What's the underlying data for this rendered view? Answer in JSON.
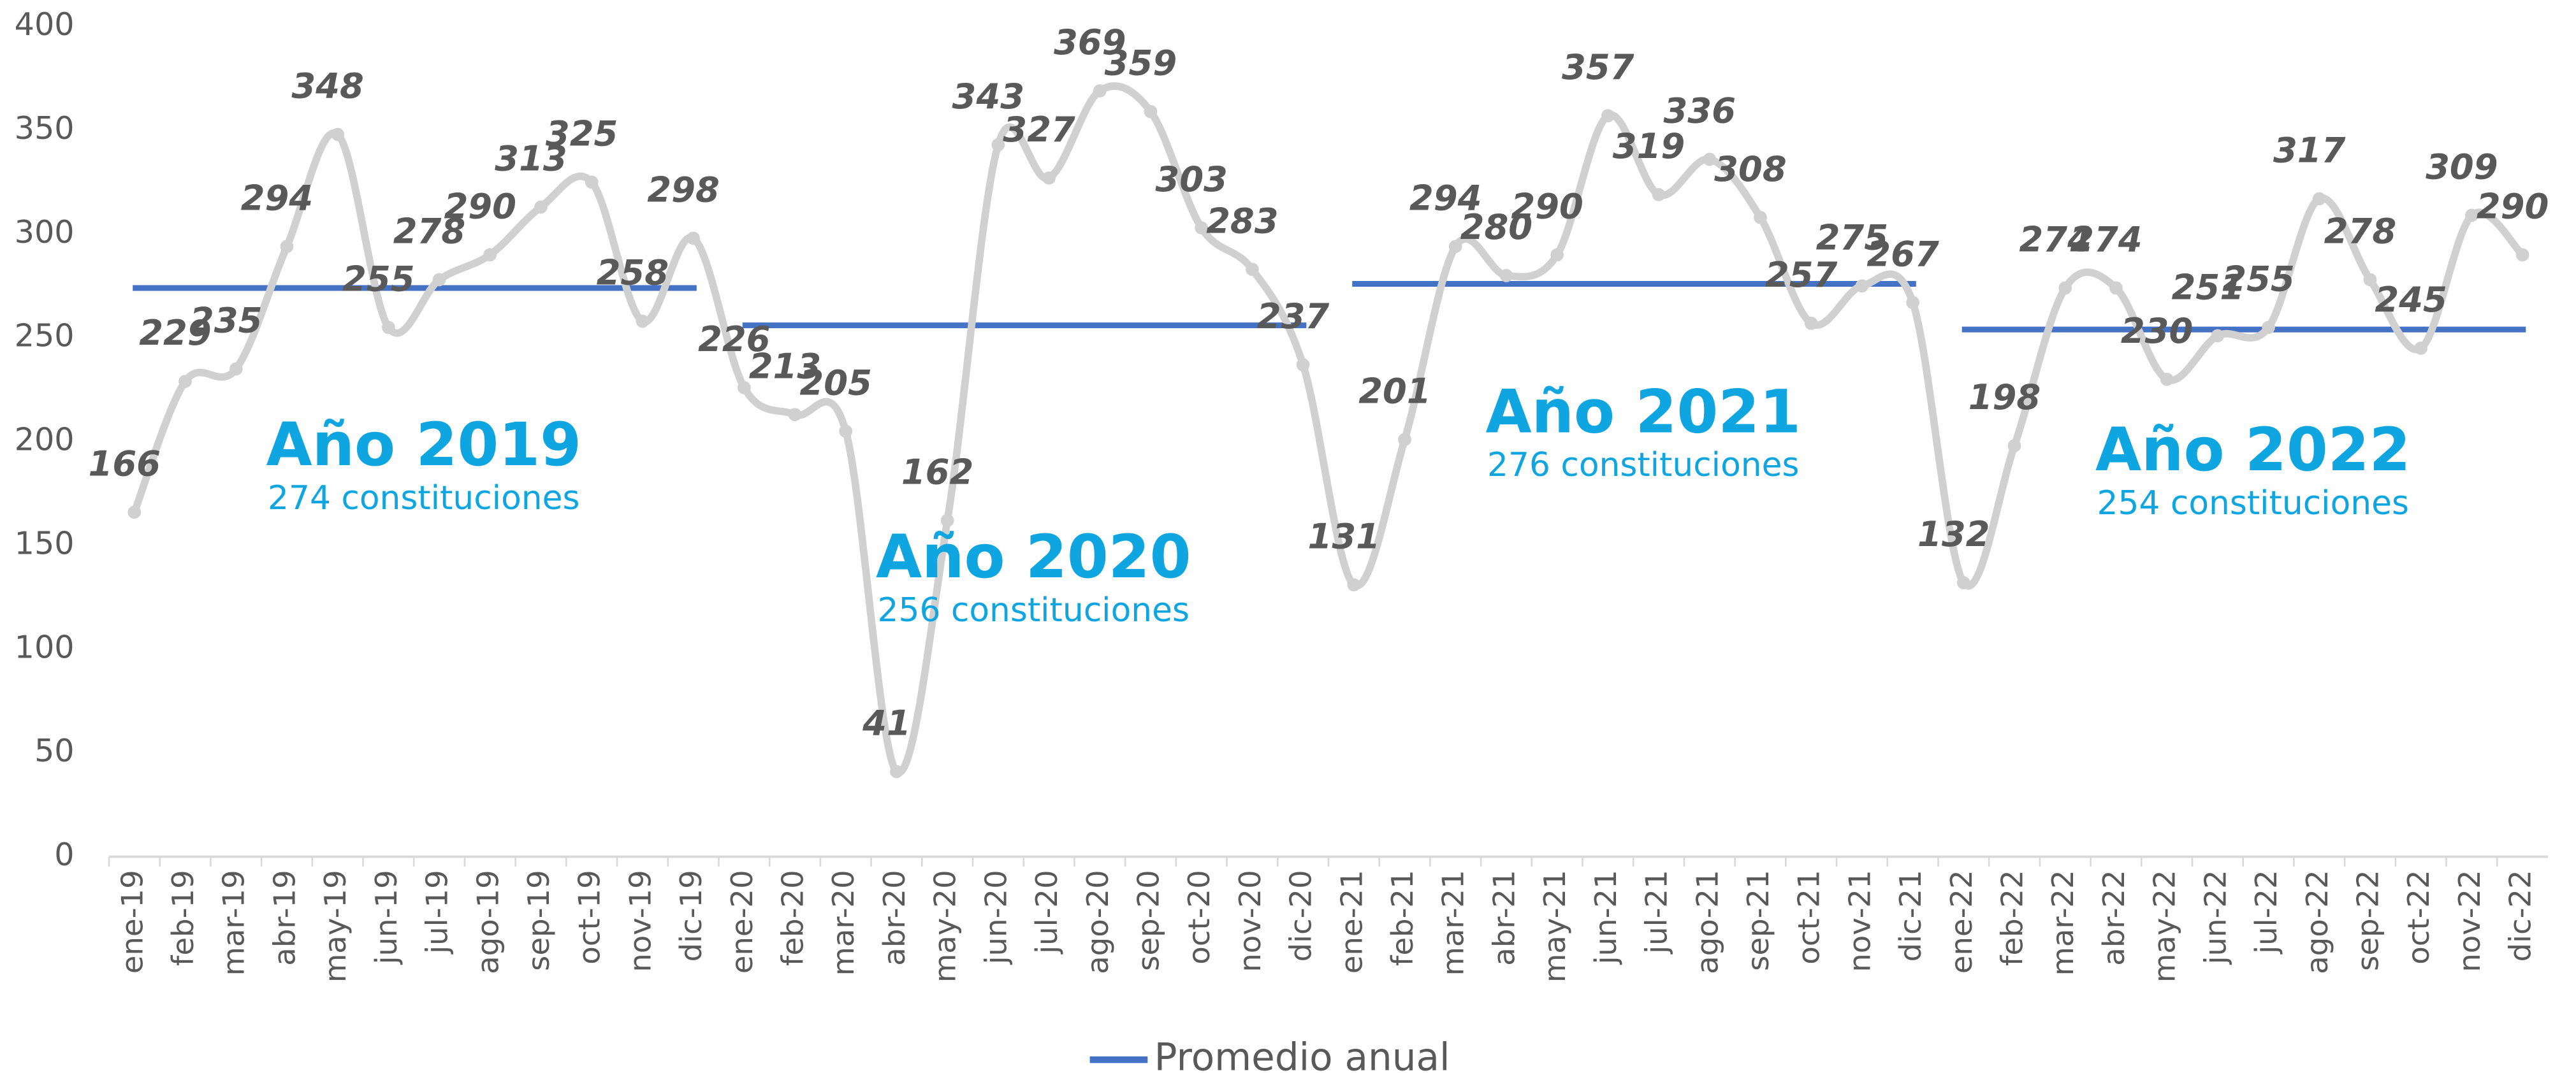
{
  "chart_data": {
    "type": "line",
    "categories": [
      "ene-19",
      "feb-19",
      "mar-19",
      "abr-19",
      "may-19",
      "jun-19",
      "jul-19",
      "ago-19",
      "sep-19",
      "oct-19",
      "nov-19",
      "dic-19",
      "ene-20",
      "feb-20",
      "mar-20",
      "abr-20",
      "may-20",
      "jun-20",
      "jul-20",
      "ago-20",
      "sep-20",
      "oct-20",
      "nov-20",
      "dic-20",
      "ene-21",
      "feb-21",
      "mar-21",
      "abr-21",
      "may-21",
      "jun-21",
      "jul-21",
      "ago-21",
      "sep-21",
      "oct-21",
      "nov-21",
      "dic-21",
      "ene-22",
      "feb-22",
      "mar-22",
      "abr-22",
      "may-22",
      "jun-22",
      "jul-22",
      "ago-22",
      "sep-22",
      "oct-22",
      "nov-22",
      "dic-22"
    ],
    "series": [
      {
        "color": "#d0d0d0",
        "values": [
          166,
          229,
          235,
          294,
          348,
          255,
          278,
          290,
          313,
          325,
          258,
          298,
          226,
          213,
          205,
          41,
          162,
          343,
          327,
          369,
          359,
          303,
          283,
          237,
          131,
          201,
          294,
          280,
          290,
          357,
          319,
          336,
          308,
          257,
          275,
          267,
          132,
          198,
          274,
          274,
          230,
          251,
          255,
          317,
          278,
          245,
          309,
          290
        ]
      }
    ],
    "annual_average": {
      "name": "Promedio anual",
      "color": "#4472c4",
      "values": [
        274,
        256,
        276,
        254
      ]
    },
    "annotations": [
      {
        "title": "Año 2019",
        "subtitle": "274 constituciones"
      },
      {
        "title": "Año 2020",
        "subtitle": "256 constituciones"
      },
      {
        "title": "Año 2021",
        "subtitle": "276 constituciones"
      },
      {
        "title": "Año 2022",
        "subtitle": "254 constituciones"
      }
    ],
    "ylim": [
      0,
      400
    ],
    "yticks": [
      0,
      50,
      100,
      150,
      200,
      250,
      300,
      350,
      400
    ],
    "grid": false,
    "legend": "bottom"
  }
}
